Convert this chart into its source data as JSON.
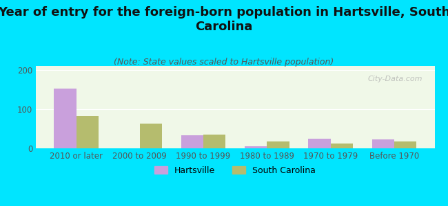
{
  "title": "Year of entry for the foreign-born population in Hartsville, South\nCarolina",
  "subtitle": "(Note: State values scaled to Hartsville population)",
  "categories": [
    "2010 or later",
    "2000 to 2009",
    "1990 to 1999",
    "1980 to 1989",
    "1970 to 1979",
    "Before 1970"
  ],
  "hartsville_values": [
    152,
    0,
    33,
    5,
    25,
    22
  ],
  "sc_values": [
    83,
    63,
    35,
    18,
    12,
    17
  ],
  "hartsville_color": "#c9a0dc",
  "sc_color": "#b5bc6e",
  "background_outer": "#00e5ff",
  "background_inner_top": "#f0f8e8",
  "background_inner_bottom": "#e8f5e0",
  "ylim": [
    0,
    210
  ],
  "yticks": [
    0,
    100,
    200
  ],
  "bar_width": 0.35,
  "watermark": "City-Data.com",
  "legend_hartsville": "Hartsville",
  "legend_sc": "South Carolina",
  "title_fontsize": 13,
  "subtitle_fontsize": 9,
  "tick_fontsize": 8.5,
  "legend_fontsize": 9
}
